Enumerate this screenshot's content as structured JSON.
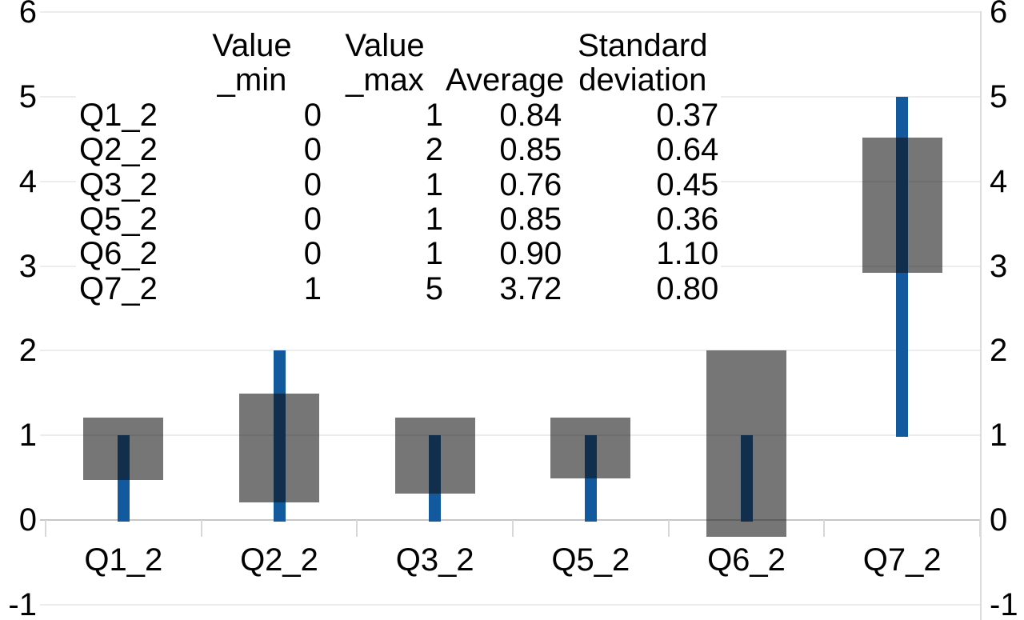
{
  "colors": {
    "bar_blue": "#12599E",
    "stdev_box": "rgba(18,18,18,0.575)",
    "gridline": "#ECECEC",
    "zero_line": "#C6C6C6",
    "axis_tick": "#D8D8D8",
    "plot_border": "#DCDCDC",
    "text": "#000000",
    "background": "#FFFFFF"
  },
  "axis": {
    "y_left_ticks": [
      "6",
      "5",
      "4",
      "3",
      "2",
      "1",
      "0",
      "-1"
    ],
    "y_right_ticks": [
      "6",
      "5",
      "4",
      "3",
      "2",
      "1",
      "0",
      "-1"
    ]
  },
  "chart_data": {
    "type": "bar",
    "subtype": "range-bars-with-stdev-boxes",
    "categories": [
      "Q1_2",
      "Q2_2",
      "Q3_2",
      "Q5_2",
      "Q6_2",
      "Q7_2"
    ],
    "series": [
      {
        "name": "Value_min",
        "values": [
          0,
          0,
          0,
          0,
          0,
          1
        ]
      },
      {
        "name": "Value_max",
        "values": [
          1,
          2,
          1,
          1,
          1,
          5
        ]
      },
      {
        "name": "Average",
        "values": [
          0.84,
          0.85,
          0.76,
          0.85,
          0.9,
          3.72
        ]
      },
      {
        "name": "Standard deviation",
        "values": [
          0.37,
          0.64,
          0.45,
          0.36,
          1.1,
          0.8
        ]
      }
    ],
    "title": "",
    "xlabel": "",
    "ylabel": "",
    "ylim": [
      -1,
      6
    ],
    "yticks": [
      -1,
      0,
      1,
      2,
      3,
      4,
      5,
      6
    ],
    "grid": true,
    "legend": "none",
    "note": "Blue bar spans Value_min..Value_max; translucent dark box spans Average minus/plus Standard deviation"
  },
  "table": {
    "headers": [
      {
        "line1": "",
        "line2": ""
      },
      {
        "line1": "Value",
        "line2": "_min"
      },
      {
        "line1": "Value",
        "line2": "_max"
      },
      {
        "line1": "",
        "line2": "Average"
      },
      {
        "line1": "Standard",
        "line2": "deviation"
      }
    ],
    "rows": [
      {
        "label": "Q1_2",
        "min": "0",
        "max": "1",
        "avg": "0.84",
        "sd": "0.37"
      },
      {
        "label": "Q2_2",
        "min": "0",
        "max": "2",
        "avg": "0.85",
        "sd": "0.64"
      },
      {
        "label": "Q3_2",
        "min": "0",
        "max": "1",
        "avg": "0.76",
        "sd": "0.45"
      },
      {
        "label": "Q5_2",
        "min": "0",
        "max": "1",
        "avg": "0.85",
        "sd": "0.36"
      },
      {
        "label": "Q6_2",
        "min": "0",
        "max": "1",
        "avg": "0.90",
        "sd": "1.10"
      },
      {
        "label": "Q7_2",
        "min": "1",
        "max": "5",
        "avg": "3.72",
        "sd": "0.80"
      }
    ]
  }
}
